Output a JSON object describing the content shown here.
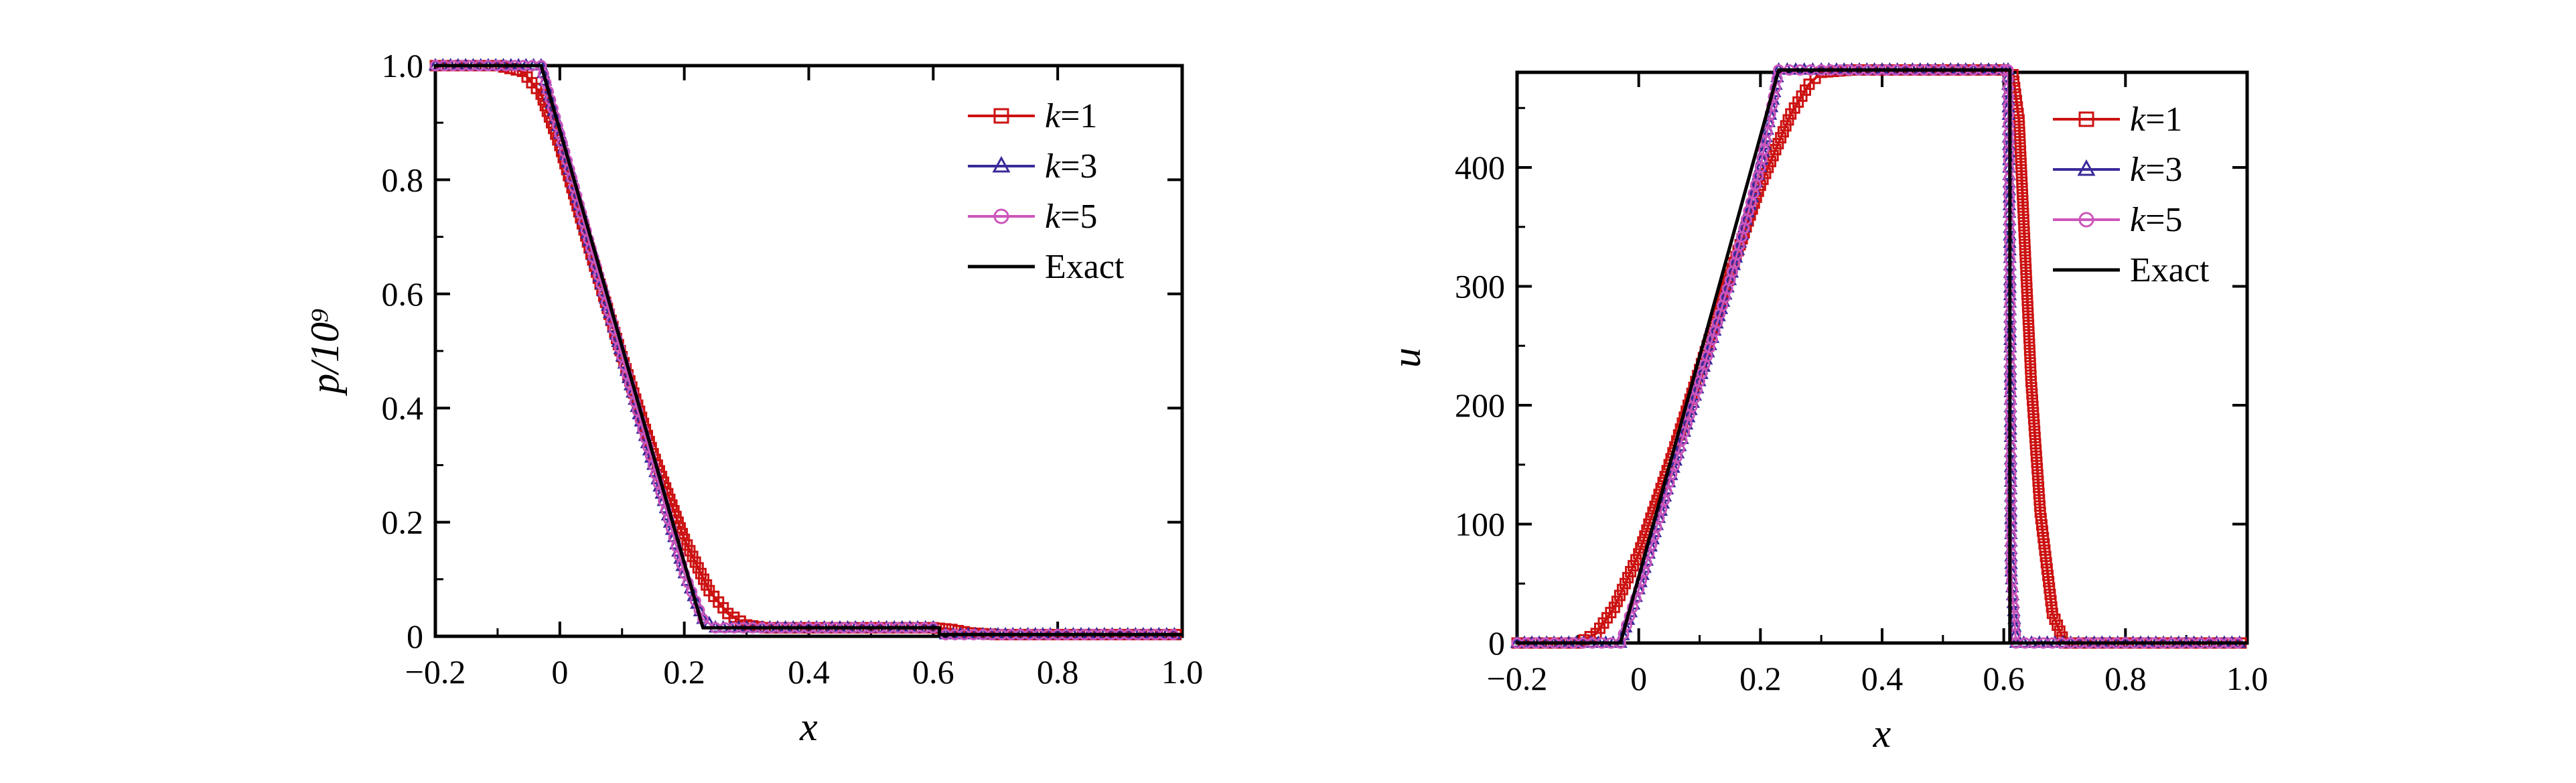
{
  "chart_data": [
    {
      "type": "line",
      "xlabel": "x",
      "ylabel": "p/10⁹",
      "xlim": [
        -0.2,
        1.0
      ],
      "ylim": [
        0,
        1.0
      ],
      "xticks": [
        -0.2,
        0,
        0.2,
        0.4,
        0.6,
        0.8,
        1.0
      ],
      "xtick_labels": [
        "−0.2",
        "0",
        "0.2",
        "0.4",
        "0.6",
        "0.8",
        "1.0"
      ],
      "yticks": [
        0,
        0.2,
        0.4,
        0.6,
        0.8,
        1.0
      ],
      "ytick_labels": [
        "0",
        "0.2",
        "0.4",
        "0.6",
        "0.8",
        "1.0"
      ],
      "legend_position": "top-right",
      "series": [
        {
          "name": "k=1",
          "name_k": "k",
          "name_rest": "=1",
          "color": "#cc1111",
          "marker": "square",
          "x": [
            -0.2,
            -0.1,
            -0.06,
            -0.03,
            0,
            0.05,
            0.1,
            0.15,
            0.2,
            0.24,
            0.27,
            0.3,
            0.33,
            0.4,
            0.5,
            0.6,
            0.63,
            0.66,
            0.7,
            0.8,
            0.9,
            1.0
          ],
          "y": [
            1.0,
            1.0,
            0.99,
            0.95,
            0.86,
            0.67,
            0.49,
            0.32,
            0.17,
            0.08,
            0.04,
            0.02,
            0.015,
            0.015,
            0.015,
            0.015,
            0.012,
            0.006,
            0.003,
            0.003,
            0.003,
            0.003
          ]
        },
        {
          "name": "k=3",
          "name_k": "k",
          "name_rest": "=3",
          "color": "#3a2a9a",
          "marker": "triangle",
          "x": [
            -0.2,
            -0.03,
            0,
            0.05,
            0.1,
            0.15,
            0.2,
            0.23,
            0.25,
            0.4,
            0.6,
            0.62,
            0.8,
            1.0
          ],
          "y": [
            1.0,
            1.0,
            0.88,
            0.68,
            0.49,
            0.3,
            0.11,
            0.03,
            0.015,
            0.015,
            0.015,
            0.003,
            0.003,
            0.003
          ]
        },
        {
          "name": "k=5",
          "name_k": "k",
          "name_rest": "=5",
          "color": "#cc55bb",
          "marker": "circle",
          "x": [
            -0.2,
            -0.03,
            0,
            0.05,
            0.1,
            0.15,
            0.2,
            0.23,
            0.25,
            0.4,
            0.6,
            0.62,
            0.8,
            1.0
          ],
          "y": [
            1.0,
            1.0,
            0.88,
            0.68,
            0.49,
            0.3,
            0.11,
            0.03,
            0.015,
            0.015,
            0.015,
            0.003,
            0.003,
            0.003
          ]
        },
        {
          "name": "Exact",
          "name_k": "",
          "name_rest": "Exact",
          "color": "#000000",
          "marker": "none",
          "x": [
            -0.2,
            -0.03,
            0.23,
            0.61,
            0.61,
            1.0
          ],
          "y": [
            1.0,
            1.0,
            0.015,
            0.015,
            0.003,
            0.003
          ]
        }
      ]
    },
    {
      "type": "line",
      "xlabel": "x",
      "ylabel": "u",
      "xlim": [
        -0.2,
        1.0
      ],
      "ylim": [
        0,
        480
      ],
      "xticks": [
        -0.2,
        0,
        0.2,
        0.4,
        0.6,
        0.8,
        1.0
      ],
      "xtick_labels": [
        "−0.2",
        "0",
        "0.2",
        "0.4",
        "0.6",
        "0.8",
        "1.0"
      ],
      "yticks": [
        0,
        100,
        200,
        300,
        400
      ],
      "ytick_labels": [
        "0",
        "100",
        "200",
        "300",
        "400"
      ],
      "legend_position": "top-right",
      "series": [
        {
          "name": "k=1",
          "name_k": "k",
          "name_rest": "=1",
          "color": "#cc1111",
          "marker": "square",
          "x": [
            -0.2,
            -0.1,
            -0.07,
            -0.04,
            0,
            0.05,
            0.1,
            0.15,
            0.2,
            0.25,
            0.28,
            0.3,
            0.35,
            0.5,
            0.6,
            0.615,
            0.625,
            0.635,
            0.645,
            0.66,
            0.68,
            0.7,
            0.8,
            0.9,
            1.0
          ],
          "y": [
            0,
            0,
            8,
            30,
            75,
            150,
            230,
            310,
            385,
            445,
            470,
            480,
            482,
            482,
            482,
            478,
            440,
            330,
            220,
            110,
            25,
            0,
            0,
            0,
            0
          ]
        },
        {
          "name": "k=3",
          "name_k": "k",
          "name_rest": "=3",
          "color": "#3a2a9a",
          "marker": "triangle",
          "x": [
            -0.2,
            -0.03,
            0,
            0.05,
            0.1,
            0.15,
            0.2,
            0.23,
            0.3,
            0.5,
            0.6,
            0.607,
            0.61,
            0.612,
            0.62,
            0.8,
            1.0
          ],
          "y": [
            0,
            0,
            45,
            135,
            220,
            305,
            400,
            482,
            482,
            482,
            482,
            482,
            330,
            60,
            0,
            0,
            0
          ]
        },
        {
          "name": "k=5",
          "name_k": "k",
          "name_rest": "=5",
          "color": "#cc55bb",
          "marker": "circle",
          "x": [
            -0.2,
            -0.03,
            0,
            0.05,
            0.1,
            0.15,
            0.2,
            0.23,
            0.3,
            0.5,
            0.6,
            0.607,
            0.61,
            0.612,
            0.62,
            0.8,
            1.0
          ],
          "y": [
            0,
            0,
            45,
            135,
            220,
            305,
            400,
            482,
            482,
            482,
            482,
            482,
            330,
            60,
            0,
            0,
            0
          ]
        },
        {
          "name": "Exact",
          "name_k": "",
          "name_rest": "Exact",
          "color": "#000000",
          "marker": "none",
          "x": [
            -0.2,
            -0.03,
            0.23,
            0.61,
            0.61,
            1.0
          ],
          "y": [
            0,
            0,
            482,
            482,
            0,
            0
          ]
        }
      ]
    }
  ]
}
